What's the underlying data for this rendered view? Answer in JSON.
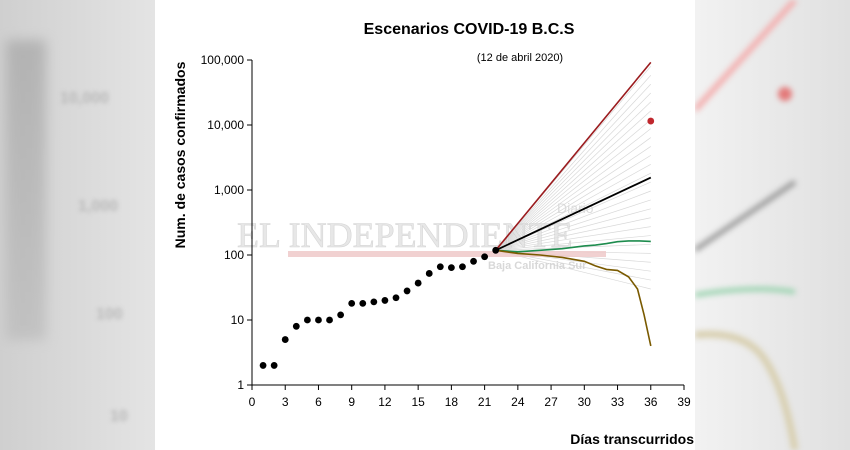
{
  "colors": {
    "exponential": "#9b1b1e",
    "central": "#000000",
    "green": "#1e8c4e",
    "decline": "#7a5a00",
    "observed": "#000000",
    "marker": "#c0272d",
    "fan": "#d8d8d8",
    "watermark": "#e2b0b0"
  },
  "watermark": {
    "brand": "EL INDEPENDIENTE",
    "top_right": "Diario",
    "bottom": "Baja California Sur"
  },
  "chart_data": {
    "type": "scatter",
    "title": "Escenarios COVID-19 B.C.S",
    "subtitle": "(12 de abril 2020)",
    "xlabel": "Días transcurridos",
    "ylabel": "Num. de casos confirmados",
    "xlim": [
      0,
      39
    ],
    "ylim": [
      1,
      100000
    ],
    "yscale": "log",
    "xticks": [
      0,
      3,
      6,
      9,
      12,
      15,
      18,
      21,
      24,
      27,
      30,
      33,
      36,
      39
    ],
    "xtick_labels": [
      "0",
      "3",
      "6",
      "9",
      "12",
      "15",
      "18",
      "21",
      "24",
      "27",
      "30",
      "33",
      "36",
      "39"
    ],
    "yticks": [
      1,
      10,
      100,
      1000,
      10000,
      100000
    ],
    "ytick_labels": [
      "1",
      "10",
      "100",
      "1,000",
      "10,000",
      "100,000"
    ],
    "grid": false,
    "observed": {
      "x": [
        1,
        2,
        3,
        4,
        5,
        6,
        7,
        8,
        9,
        10,
        11,
        12,
        13,
        14,
        15,
        16,
        17,
        18,
        19,
        20,
        21,
        22
      ],
      "y": [
        2,
        2,
        5,
        8,
        10,
        10,
        10,
        12,
        18,
        18,
        19,
        20,
        22,
        28,
        37,
        52,
        66,
        64,
        66,
        80,
        94,
        118
      ]
    },
    "scenarios": [
      {
        "key": "exponential",
        "x": [
          22,
          36
        ],
        "y": [
          118,
          92000
        ]
      },
      {
        "key": "central",
        "x": [
          22,
          36
        ],
        "y": [
          118,
          1550
        ]
      },
      {
        "key": "green",
        "x": [
          22,
          24,
          26,
          28,
          30,
          31,
          32,
          33,
          34,
          35,
          36
        ],
        "y": [
          118,
          112,
          118,
          125,
          138,
          142,
          150,
          160,
          165,
          165,
          162
        ]
      },
      {
        "key": "decline",
        "x": [
          22,
          24,
          26,
          28,
          30,
          31,
          32,
          33,
          34,
          34.8,
          35.4,
          36
        ],
        "y": [
          118,
          106,
          100,
          92,
          80,
          68,
          60,
          58,
          46,
          30,
          12,
          4
        ]
      }
    ],
    "fan": {
      "x0": 22,
      "y0": 118,
      "x1": 36,
      "y_top": 80000,
      "y_bottom": 30,
      "count": 26
    },
    "marker": {
      "x": 36,
      "y": 11500
    }
  }
}
